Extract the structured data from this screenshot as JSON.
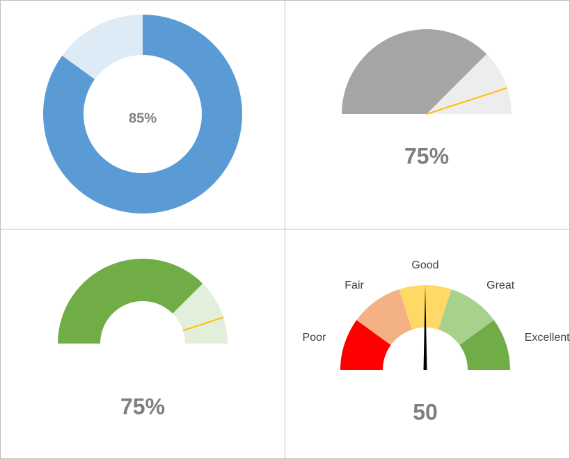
{
  "chart_data": [
    {
      "type": "donut",
      "values": [
        85,
        15
      ],
      "value_labels": [
        "85%",
        null
      ],
      "colors": [
        "#5b9bd5",
        "#ddebf7"
      ]
    },
    {
      "type": "gauge",
      "hole": false,
      "values": [
        75,
        25
      ],
      "value_labels": [
        "75%",
        null
      ],
      "colors": [
        "#a5a5a5",
        "#ededed"
      ],
      "target": 90,
      "target_color": "#ffc000"
    },
    {
      "type": "gauge",
      "hole": true,
      "values": [
        75,
        25
      ],
      "value_labels": [
        "75%",
        null
      ],
      "colors": [
        "#70ad47",
        "#e2efda"
      ],
      "target": 90,
      "target_color": "#ffc000"
    },
    {
      "type": "gauge",
      "hole": true,
      "categories": [
        "Poor",
        "Fair",
        "Good",
        "Great",
        "Excellent"
      ],
      "values": [
        20,
        20,
        20,
        20,
        20
      ],
      "colors": [
        "#ff0000",
        "#f4b183",
        "#ffd966",
        "#a9d18e",
        "#70ad47"
      ],
      "needle": 50,
      "needle_color": "#000000"
    }
  ]
}
